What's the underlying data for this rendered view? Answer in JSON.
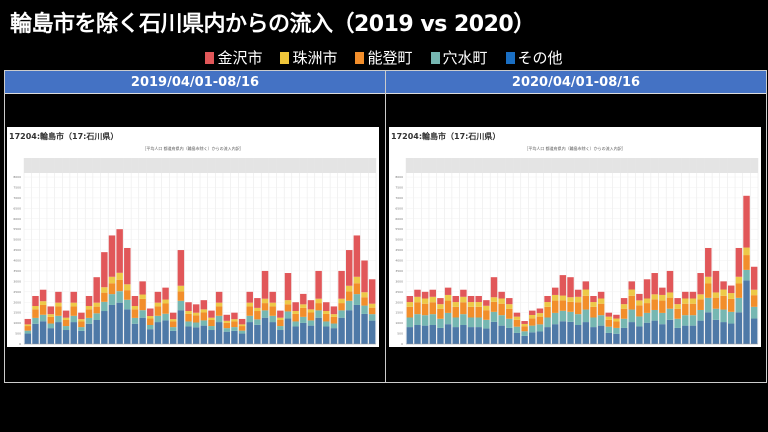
{
  "title": "輪島市を除く石川県内からの流入（2019 vs 2020）",
  "legend": [
    {
      "label": "金沢市",
      "color": "#e15759"
    },
    {
      "label": "珠洲市",
      "color": "#f0c63a"
    },
    {
      "label": "能登町",
      "color": "#f28e2b"
    },
    {
      "label": "穴水町",
      "color": "#76b7b2"
    },
    {
      "label": "その他",
      "color": "#1a6fc4"
    }
  ],
  "panels": [
    {
      "header": "2019/04/01-08/16"
    },
    {
      "header": "2020/04/01-08/16"
    }
  ],
  "chart_data": [
    {
      "type": "bar",
      "stacked": true,
      "title": "17204:輪島市（17:石川県）",
      "subtitle": "［平均人口 都道府県内（輪島市除く）からの流入内訳］",
      "ylim": [
        0,
        8000
      ],
      "yticks": [
        0,
        500,
        1000,
        1500,
        2000,
        2500,
        3000,
        3500,
        4000,
        4500,
        5000,
        5500,
        6000,
        6500,
        7000,
        7500,
        8000
      ],
      "grid": true,
      "period": "2019/04/01-08/16",
      "series": [
        {
          "name": "その他",
          "color": "#4e79a7",
          "values": [
            500,
            970,
            1090,
            760,
            1050,
            670,
            1050,
            630,
            970,
            1150,
            1580,
            1870,
            1980,
            1660,
            970,
            1260,
            710,
            1050,
            1130,
            630,
            1620,
            840,
            800,
            880,
            670,
            1050,
            590,
            630,
            500,
            1050,
            920,
            1260,
            1050,
            670,
            1220,
            840,
            1010,
            880,
            1260,
            840,
            760,
            1260,
            1620,
            1870,
            1440,
            1120
          ]
        },
        {
          "name": "穴水町",
          "color": "#76b7b2",
          "values": [
            140,
            280,
            310,
            220,
            300,
            190,
            300,
            180,
            280,
            320,
            440,
            520,
            550,
            460,
            280,
            360,
            200,
            300,
            320,
            180,
            450,
            240,
            230,
            250,
            190,
            300,
            170,
            180,
            140,
            300,
            260,
            350,
            300,
            190,
            340,
            240,
            290,
            250,
            350,
            240,
            220,
            350,
            450,
            520,
            400,
            310
          ]
        },
        {
          "name": "能登町",
          "color": "#f28e2b",
          "values": [
            220,
            410,
            470,
            320,
            450,
            290,
            450,
            270,
            410,
            320,
            440,
            520,
            550,
            460,
            410,
            540,
            310,
            450,
            490,
            270,
            450,
            360,
            340,
            380,
            290,
            450,
            250,
            270,
            220,
            450,
            400,
            350,
            450,
            290,
            340,
            360,
            430,
            380,
            350,
            360,
            320,
            350,
            450,
            520,
            400,
            310
          ]
        },
        {
          "name": "珠洲市",
          "color": "#edc948",
          "values": [
            80,
            160,
            180,
            130,
            180,
            110,
            180,
            110,
            160,
            190,
            260,
            310,
            330,
            280,
            160,
            210,
            120,
            180,
            190,
            110,
            270,
            140,
            130,
            150,
            110,
            180,
            100,
            110,
            80,
            180,
            150,
            210,
            180,
            110,
            200,
            140,
            170,
            150,
            210,
            140,
            130,
            210,
            270,
            310,
            240,
            190
          ]
        },
        {
          "name": "金沢市",
          "color": "#e15759",
          "values": [
            260,
            480,
            550,
            370,
            520,
            340,
            520,
            310,
            480,
            1220,
            1680,
            1980,
            2090,
            1740,
            480,
            630,
            360,
            520,
            570,
            310,
            1710,
            420,
            400,
            440,
            340,
            520,
            290,
            310,
            260,
            520,
            470,
            1330,
            520,
            340,
            1300,
            420,
            500,
            440,
            1330,
            420,
            370,
            1330,
            1710,
            1980,
            1520,
            1170
          ]
        }
      ]
    },
    {
      "type": "bar",
      "stacked": true,
      "title": "17204:輪島市（17:石川県）",
      "subtitle": "［平均人口 都道府県内（輪島市除く）からの流入内訳］",
      "ylim": [
        0,
        8000
      ],
      "yticks": [
        0,
        500,
        1000,
        1500,
        2000,
        2500,
        3000,
        3500,
        4000,
        4500,
        5000,
        5500,
        6000,
        6500,
        7000,
        7500,
        8000
      ],
      "grid": true,
      "period": "2020/04/01-08/16",
      "series": [
        {
          "name": "その他",
          "color": "#4e79a7",
          "values": [
            810,
            910,
            880,
            910,
            770,
            950,
            810,
            910,
            810,
            810,
            740,
            1060,
            880,
            770,
            530,
            390,
            560,
            600,
            810,
            950,
            1090,
            1060,
            910,
            1050,
            810,
            880,
            530,
            490,
            770,
            1050,
            840,
            1020,
            1120,
            950,
            1160,
            770,
            880,
            880,
            1120,
            1520,
            1160,
            1050,
            980,
            1520,
            3050,
            1220
          ]
        },
        {
          "name": "穴水町",
          "color": "#76b7b2",
          "values": [
            460,
            520,
            500,
            520,
            440,
            540,
            460,
            520,
            460,
            460,
            420,
            480,
            500,
            440,
            300,
            220,
            320,
            340,
            460,
            540,
            500,
            480,
            520,
            600,
            460,
            500,
            300,
            280,
            440,
            600,
            480,
            470,
            510,
            540,
            530,
            440,
            500,
            500,
            510,
            690,
            530,
            600,
            560,
            690,
            500,
            560
          ]
        },
        {
          "name": "能登町",
          "color": "#f28e2b",
          "values": [
            510,
            570,
            550,
            570,
            480,
            590,
            510,
            570,
            510,
            510,
            460,
            480,
            550,
            480,
            330,
            240,
            350,
            370,
            510,
            590,
            500,
            480,
            570,
            660,
            510,
            550,
            330,
            310,
            480,
            660,
            530,
            470,
            510,
            590,
            530,
            480,
            550,
            550,
            510,
            690,
            530,
            660,
            620,
            690,
            710,
            560
          ]
        },
        {
          "name": "珠洲市",
          "color": "#edc948",
          "values": [
            230,
            260,
            250,
            260,
            220,
            270,
            230,
            260,
            230,
            230,
            210,
            220,
            250,
            220,
            150,
            110,
            160,
            170,
            230,
            270,
            230,
            220,
            260,
            300,
            230,
            250,
            150,
            140,
            220,
            300,
            240,
            220,
            240,
            270,
            250,
            220,
            250,
            250,
            240,
            320,
            250,
            300,
            280,
            320,
            360,
            260
          ]
        },
        {
          "name": "金沢市",
          "color": "#e15759",
          "values": [
            290,
            340,
            320,
            340,
            290,
            350,
            290,
            340,
            290,
            290,
            270,
            960,
            320,
            290,
            190,
            140,
            210,
            220,
            290,
            350,
            980,
            960,
            340,
            390,
            290,
            320,
            190,
            180,
            290,
            390,
            310,
            920,
            1020,
            350,
            1030,
            290,
            320,
            320,
            1020,
            1380,
            1030,
            390,
            360,
            1380,
            2480,
            1100
          ]
        }
      ]
    }
  ]
}
